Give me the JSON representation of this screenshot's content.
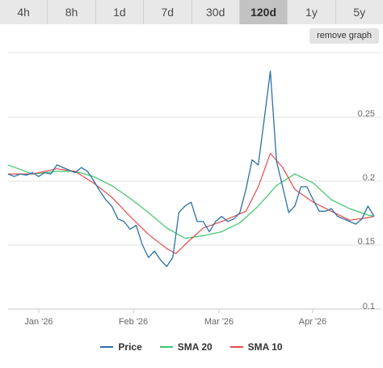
{
  "tabs": [
    {
      "label": "4h",
      "active": false
    },
    {
      "label": "8h",
      "active": false
    },
    {
      "label": "1d",
      "active": false
    },
    {
      "label": "7d",
      "active": false
    },
    {
      "label": "30d",
      "active": false
    },
    {
      "label": "120d",
      "active": true
    },
    {
      "label": "1y",
      "active": false
    },
    {
      "label": "5y",
      "active": false
    }
  ],
  "remove_graph_label": "remove graph",
  "colors": {
    "price": "#2b6fa8",
    "sma20": "#3cc46a",
    "sma10": "#e44a4a",
    "grid": "#e2e2e2",
    "axis": "#c8c8c8"
  },
  "chart_data": {
    "type": "line",
    "x_tick_labels": [
      "Jan '26",
      "Feb '26",
      "Mar '26",
      "Apr '26"
    ],
    "y_tick_labels": [
      "0.1",
      "0.15",
      "0.2",
      "0.25"
    ],
    "ylim": [
      0.1,
      0.3
    ],
    "grid": true,
    "legend_position": "bottom",
    "series": [
      {
        "name": "Price",
        "color": "#2b6fa8",
        "x": [
          "2025-12-23",
          "2025-12-25",
          "2025-12-27",
          "2025-12-29",
          "2025-12-31",
          "2026-01-02",
          "2026-01-04",
          "2026-01-06",
          "2026-01-08",
          "2026-01-10",
          "2026-01-12",
          "2026-01-14",
          "2026-01-16",
          "2026-01-18",
          "2026-01-20",
          "2026-01-22",
          "2026-01-24",
          "2026-01-26",
          "2026-01-28",
          "2026-01-30",
          "2026-02-01",
          "2026-02-03",
          "2026-02-05",
          "2026-02-07",
          "2026-02-09",
          "2026-02-11",
          "2026-02-13",
          "2026-02-15",
          "2026-02-17",
          "2026-02-19",
          "2026-02-21",
          "2026-02-23",
          "2026-02-25",
          "2026-02-27",
          "2026-03-01",
          "2026-03-03",
          "2026-03-05",
          "2026-03-07",
          "2026-03-09",
          "2026-03-11",
          "2026-03-13",
          "2026-03-15",
          "2026-03-17",
          "2026-03-19",
          "2026-03-21",
          "2026-03-23",
          "2026-03-25",
          "2026-03-27",
          "2026-03-29",
          "2026-03-31",
          "2026-04-02",
          "2026-04-04",
          "2026-04-06",
          "2026-04-08",
          "2026-04-10",
          "2026-04-12",
          "2026-04-14",
          "2026-04-16",
          "2026-04-18",
          "2026-04-20",
          "2026-04-22"
        ],
        "y": [
          0.205,
          0.203,
          0.205,
          0.204,
          0.206,
          0.203,
          0.206,
          0.205,
          0.212,
          0.21,
          0.208,
          0.206,
          0.21,
          0.207,
          0.2,
          0.192,
          0.185,
          0.18,
          0.17,
          0.168,
          0.162,
          0.165,
          0.15,
          0.14,
          0.145,
          0.138,
          0.133,
          0.14,
          0.175,
          0.18,
          0.183,
          0.168,
          0.168,
          0.16,
          0.168,
          0.172,
          0.168,
          0.17,
          0.175,
          0.193,
          0.216,
          0.212,
          0.248,
          0.285,
          0.215,
          0.195,
          0.175,
          0.18,
          0.195,
          0.195,
          0.185,
          0.176,
          0.176,
          0.178,
          0.172,
          0.17,
          0.168,
          0.166,
          0.17,
          0.18,
          0.172
        ]
      },
      {
        "name": "SMA 20",
        "color": "#3cc46a",
        "x": [
          "2025-12-23",
          "2025-12-31",
          "2026-01-08",
          "2026-01-14",
          "2026-01-20",
          "2026-01-26",
          "2026-02-01",
          "2026-02-07",
          "2026-02-13",
          "2026-02-19",
          "2026-02-25",
          "2026-03-03",
          "2026-03-09",
          "2026-03-15",
          "2026-03-21",
          "2026-03-27",
          "2026-04-02",
          "2026-04-08",
          "2026-04-14",
          "2026-04-20",
          "2026-04-22"
        ],
        "y": [
          0.212,
          0.205,
          0.207,
          0.207,
          0.203,
          0.196,
          0.186,
          0.175,
          0.163,
          0.155,
          0.157,
          0.16,
          0.167,
          0.18,
          0.196,
          0.205,
          0.198,
          0.185,
          0.178,
          0.173,
          0.172
        ]
      },
      {
        "name": "SMA 10",
        "color": "#e44a4a",
        "x": [
          "2025-12-23",
          "2025-12-31",
          "2026-01-08",
          "2026-01-14",
          "2026-01-20",
          "2026-01-26",
          "2026-02-01",
          "2026-02-07",
          "2026-02-13",
          "2026-02-16",
          "2026-02-19",
          "2026-02-25",
          "2026-03-03",
          "2026-03-07",
          "2026-03-11",
          "2026-03-15",
          "2026-03-19",
          "2026-03-23",
          "2026-03-27",
          "2026-04-02",
          "2026-04-08",
          "2026-04-14",
          "2026-04-20",
          "2026-04-22"
        ],
        "y": [
          0.205,
          0.205,
          0.209,
          0.207,
          0.198,
          0.187,
          0.172,
          0.158,
          0.147,
          0.143,
          0.15,
          0.163,
          0.168,
          0.172,
          0.176,
          0.195,
          0.221,
          0.21,
          0.193,
          0.183,
          0.176,
          0.169,
          0.171,
          0.172
        ]
      }
    ]
  }
}
